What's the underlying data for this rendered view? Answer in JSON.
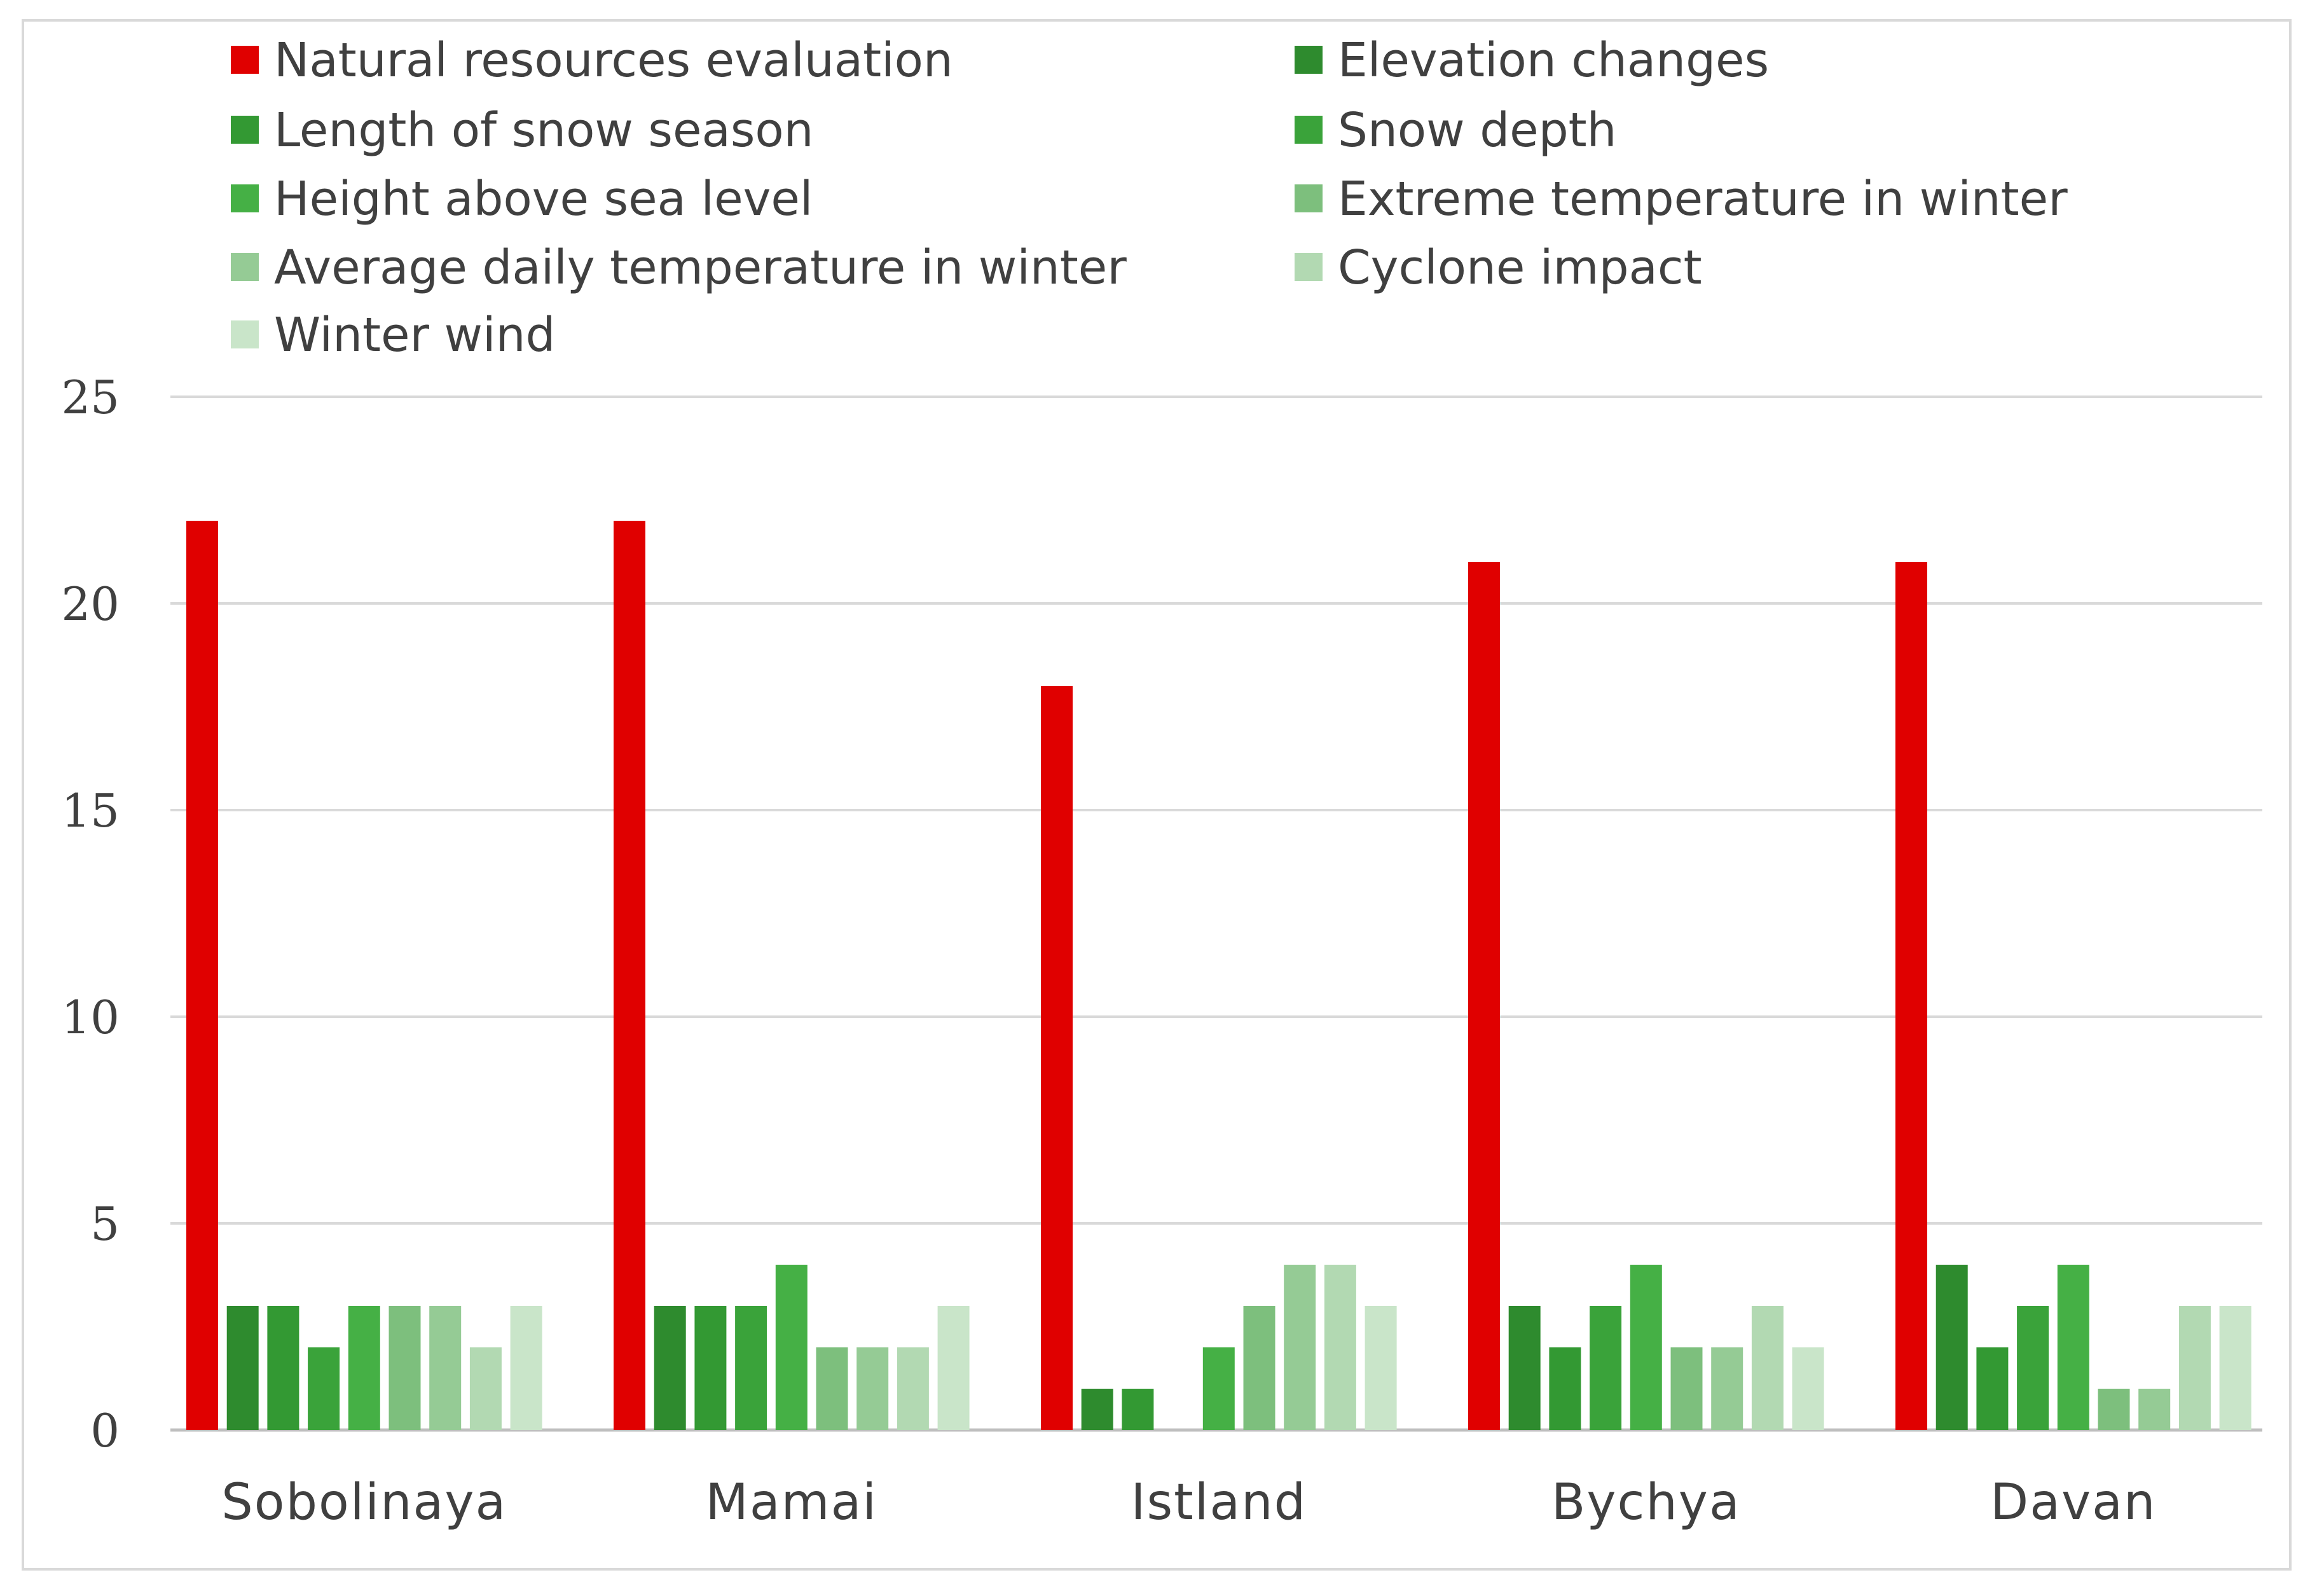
{
  "chart_data": {
    "type": "bar",
    "title": "",
    "xlabel": "",
    "ylabel": "",
    "ylim": [
      0,
      25
    ],
    "yticks": [
      "0",
      "5",
      "10",
      "15",
      "20",
      "25"
    ],
    "grid": true,
    "legend_position": "top",
    "categories": [
      "Sobolinaya",
      "Mamai",
      "Istland",
      "Bychya",
      "Davan"
    ],
    "series": [
      {
        "name": "Natural resources evaluation",
        "color": "#e00000",
        "values": [
          22,
          22,
          18,
          21,
          21
        ]
      },
      {
        "name": "Elevation changes",
        "color": "#2e8b2e",
        "values": [
          3,
          3,
          1,
          3,
          4
        ]
      },
      {
        "name": "Length of snow season",
        "color": "#339933",
        "values": [
          3,
          3,
          1,
          2,
          2
        ]
      },
      {
        "name": "Snow depth",
        "color": "#3aa33a",
        "values": [
          2,
          3,
          0,
          3,
          3
        ]
      },
      {
        "name": "Height above sea level",
        "color": "#45b045",
        "values": [
          3,
          4,
          2,
          4,
          4
        ]
      },
      {
        "name": "Extreme temperature in winter",
        "color": "#7dbf7d",
        "values": [
          3,
          2,
          3,
          2,
          1
        ]
      },
      {
        "name": "Average daily temperature in winter",
        "color": "#95cb95",
        "values": [
          3,
          2,
          4,
          2,
          1
        ]
      },
      {
        "name": "Cyclone impact",
        "color": "#b2d9b2",
        "values": [
          2,
          2,
          4,
          3,
          3
        ]
      },
      {
        "name": "Winter wind",
        "color": "#c9e5c9",
        "values": [
          3,
          3,
          3,
          2,
          3
        ]
      }
    ]
  }
}
